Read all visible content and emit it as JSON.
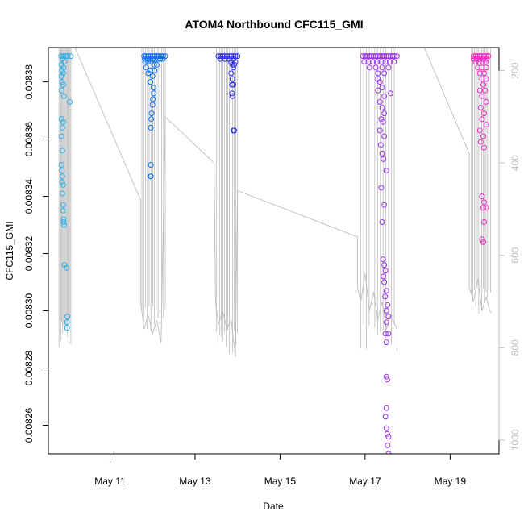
{
  "chart_data": {
    "type": "scatter",
    "title": "ATOM4 Northbound CFC115_GMI",
    "xlabel": "Date",
    "ylabel": "CFC115_GMI",
    "x_unit": "days since May 9 00:00",
    "xlim": [
      0.55,
      11.15
    ],
    "ylim": [
      0.00825,
      0.008392
    ],
    "y2lim": [
      1030,
      150
    ],
    "x_ticks": [
      {
        "label": "May 11",
        "value": 2
      },
      {
        "label": "May 13",
        "value": 4
      },
      {
        "label": "May 15",
        "value": 6
      },
      {
        "label": "May 17",
        "value": 8
      },
      {
        "label": "May 19",
        "value": 10
      }
    ],
    "y_ticks": [
      {
        "label": "0.00826",
        "value": 0.00826
      },
      {
        "label": "0.00828",
        "value": 0.00828
      },
      {
        "label": "0.00830",
        "value": 0.0083
      },
      {
        "label": "0.00832",
        "value": 0.00832
      },
      {
        "label": "0.00834",
        "value": 0.00834
      },
      {
        "label": "0.00836",
        "value": 0.00836
      },
      {
        "label": "0.00838",
        "value": 0.00838
      }
    ],
    "y2_ticks": [
      {
        "label": "200",
        "value": 200
      },
      {
        "label": "400",
        "value": 400
      },
      {
        "label": "600",
        "value": 600
      },
      {
        "label": "800",
        "value": 800
      },
      {
        "label": "1000",
        "value": 1000
      }
    ],
    "flights": [
      {
        "name": "flight-1",
        "color": "#29AEEA",
        "t0": 0.8,
        "t1": 1.08,
        "minP": 800,
        "points": [
          [
            0.85,
            0.008389
          ],
          [
            0.9,
            0.008389
          ],
          [
            0.95,
            0.008389
          ],
          [
            1.0,
            0.008389
          ],
          [
            1.08,
            0.008389
          ],
          [
            0.88,
            0.008388
          ],
          [
            0.93,
            0.008387
          ],
          [
            0.86,
            0.008386
          ],
          [
            0.91,
            0.008385
          ],
          [
            0.87,
            0.008384
          ],
          [
            0.9,
            0.008383
          ],
          [
            0.86,
            0.008382
          ],
          [
            0.87,
            0.00838
          ],
          [
            0.9,
            0.008379
          ],
          [
            0.86,
            0.008377
          ],
          [
            0.92,
            0.008375
          ],
          [
            1.05,
            0.008373
          ],
          [
            0.86,
            0.008367
          ],
          [
            0.9,
            0.008366
          ],
          [
            0.88,
            0.008364
          ],
          [
            0.86,
            0.008361
          ],
          [
            0.88,
            0.008356
          ],
          [
            0.86,
            0.008351
          ],
          [
            0.87,
            0.008349
          ],
          [
            0.88,
            0.008347
          ],
          [
            0.87,
            0.008345
          ],
          [
            0.9,
            0.008344
          ],
          [
            0.88,
            0.008341
          ],
          [
            0.9,
            0.008337
          ],
          [
            0.9,
            0.008335
          ],
          [
            0.91,
            0.008332
          ],
          [
            0.91,
            0.008331
          ],
          [
            0.92,
            0.00833
          ],
          [
            0.93,
            0.008316
          ],
          [
            0.98,
            0.008315
          ],
          [
            1.0,
            0.008298
          ],
          [
            0.99,
            0.008296
          ],
          [
            0.99,
            0.008294
          ]
        ]
      },
      {
        "name": "flight-2",
        "color": "#0A6FEF",
        "t0": 2.75,
        "t1": 3.3,
        "minP": 770,
        "points": [
          [
            2.8,
            0.008389
          ],
          [
            2.85,
            0.008389
          ],
          [
            2.9,
            0.008389
          ],
          [
            2.95,
            0.008389
          ],
          [
            3.0,
            0.008389
          ],
          [
            3.05,
            0.008389
          ],
          [
            3.1,
            0.008389
          ],
          [
            3.15,
            0.008389
          ],
          [
            3.2,
            0.008389
          ],
          [
            3.25,
            0.008389
          ],
          [
            3.3,
            0.008389
          ],
          [
            2.82,
            0.008388
          ],
          [
            2.88,
            0.008388
          ],
          [
            2.94,
            0.008388
          ],
          [
            3.0,
            0.008388
          ],
          [
            3.06,
            0.008388
          ],
          [
            3.12,
            0.008388
          ],
          [
            3.18,
            0.008388
          ],
          [
            3.24,
            0.008388
          ],
          [
            2.83,
            0.008387
          ],
          [
            2.9,
            0.008387
          ],
          [
            2.97,
            0.008387
          ],
          [
            3.04,
            0.008386
          ],
          [
            3.1,
            0.008386
          ],
          [
            2.85,
            0.008385
          ],
          [
            2.95,
            0.008384
          ],
          [
            3.05,
            0.008384
          ],
          [
            2.9,
            0.008383
          ],
          [
            3.0,
            0.008382
          ],
          [
            2.95,
            0.00838
          ],
          [
            3.02,
            0.008378
          ],
          [
            3.03,
            0.008376
          ],
          [
            3.01,
            0.008374
          ],
          [
            3.0,
            0.008372
          ],
          [
            2.98,
            0.008369
          ],
          [
            2.97,
            0.008367
          ],
          [
            2.96,
            0.008364
          ],
          [
            2.96,
            0.008351
          ],
          [
            2.96,
            0.008347
          ],
          [
            2.95,
            0.008347
          ]
        ]
      },
      {
        "name": "flight-3",
        "color": "#2F2FE0",
        "t0": 4.5,
        "t1": 5.0,
        "minP": 820,
        "points": [
          [
            4.55,
            0.008389
          ],
          [
            4.6,
            0.008389
          ],
          [
            4.65,
            0.008389
          ],
          [
            4.7,
            0.008389
          ],
          [
            4.75,
            0.008389
          ],
          [
            4.8,
            0.008389
          ],
          [
            4.85,
            0.008389
          ],
          [
            4.9,
            0.008389
          ],
          [
            4.95,
            0.008389
          ],
          [
            5.0,
            0.008389
          ],
          [
            4.6,
            0.008388
          ],
          [
            4.7,
            0.008388
          ],
          [
            4.8,
            0.008388
          ],
          [
            4.9,
            0.008388
          ],
          [
            4.85,
            0.008387
          ],
          [
            4.95,
            0.008387
          ],
          [
            4.88,
            0.008386
          ],
          [
            4.92,
            0.008386
          ],
          [
            4.9,
            0.008385
          ],
          [
            4.85,
            0.008383
          ],
          [
            4.88,
            0.008381
          ],
          [
            4.87,
            0.008379
          ],
          [
            4.9,
            0.008379
          ],
          [
            4.87,
            0.008376
          ],
          [
            4.88,
            0.008375
          ],
          [
            4.9,
            0.008363
          ],
          [
            4.92,
            0.008363
          ]
        ]
      },
      {
        "name": "flight-4",
        "color": "#9B2EF0",
        "t0": 7.9,
        "t1": 8.75,
        "minP": 810,
        "points": [
          [
            7.95,
            0.008389
          ],
          [
            8.0,
            0.008389
          ],
          [
            8.05,
            0.008389
          ],
          [
            8.1,
            0.008389
          ],
          [
            8.15,
            0.008389
          ],
          [
            8.2,
            0.008389
          ],
          [
            8.25,
            0.008389
          ],
          [
            8.3,
            0.008389
          ],
          [
            8.35,
            0.008389
          ],
          [
            8.4,
            0.008389
          ],
          [
            8.45,
            0.008389
          ],
          [
            8.5,
            0.008389
          ],
          [
            8.55,
            0.008389
          ],
          [
            8.6,
            0.008389
          ],
          [
            8.65,
            0.008389
          ],
          [
            8.7,
            0.008389
          ],
          [
            8.75,
            0.008389
          ],
          [
            7.98,
            0.008387
          ],
          [
            8.08,
            0.008387
          ],
          [
            8.18,
            0.008387
          ],
          [
            8.28,
            0.008387
          ],
          [
            8.38,
            0.008387
          ],
          [
            8.48,
            0.008387
          ],
          [
            8.58,
            0.008387
          ],
          [
            8.68,
            0.008387
          ],
          [
            8.1,
            0.008385
          ],
          [
            8.25,
            0.008385
          ],
          [
            8.4,
            0.008385
          ],
          [
            8.55,
            0.008385
          ],
          [
            8.3,
            0.008383
          ],
          [
            8.45,
            0.008383
          ],
          [
            8.3,
            0.008381
          ],
          [
            8.35,
            0.00838
          ],
          [
            8.4,
            0.008378
          ],
          [
            8.3,
            0.008377
          ],
          [
            8.45,
            0.008375
          ],
          [
            8.6,
            0.008376
          ],
          [
            8.35,
            0.008373
          ],
          [
            8.4,
            0.008371
          ],
          [
            8.45,
            0.008369
          ],
          [
            8.38,
            0.008367
          ],
          [
            8.42,
            0.008366
          ],
          [
            8.35,
            0.008363
          ],
          [
            8.45,
            0.008361
          ],
          [
            8.37,
            0.008358
          ],
          [
            8.4,
            0.008355
          ],
          [
            8.43,
            0.008353
          ],
          [
            8.5,
            0.008349
          ],
          [
            8.38,
            0.008343
          ],
          [
            8.45,
            0.008337
          ],
          [
            8.4,
            0.008331
          ],
          [
            8.42,
            0.008318
          ],
          [
            8.45,
            0.008316
          ],
          [
            8.48,
            0.008314
          ],
          [
            8.43,
            0.008312
          ],
          [
            8.45,
            0.00831
          ],
          [
            8.5,
            0.008307
          ],
          [
            8.47,
            0.008305
          ],
          [
            8.53,
            0.008302
          ],
          [
            8.5,
            0.0083
          ],
          [
            8.55,
            0.008298
          ],
          [
            8.5,
            0.008296
          ],
          [
            8.48,
            0.008292
          ],
          [
            8.55,
            0.008292
          ],
          [
            8.5,
            0.008289
          ],
          [
            8.5,
            0.008277
          ],
          [
            8.52,
            0.008276
          ],
          [
            8.5,
            0.008266
          ],
          [
            8.48,
            0.008263
          ],
          [
            8.5,
            0.008259
          ],
          [
            8.52,
            0.008257
          ],
          [
            8.55,
            0.008256
          ],
          [
            8.53,
            0.008253
          ],
          [
            8.55,
            0.00825
          ],
          [
            8.52,
            0.008249
          ]
        ]
      },
      {
        "name": "flight-5",
        "color": "#EC2AC4",
        "t0": 10.5,
        "t1": 10.95,
        "minP": 730,
        "points": [
          [
            10.55,
            0.008389
          ],
          [
            10.6,
            0.008389
          ],
          [
            10.65,
            0.008389
          ],
          [
            10.7,
            0.008389
          ],
          [
            10.75,
            0.008389
          ],
          [
            10.8,
            0.008389
          ],
          [
            10.85,
            0.008389
          ],
          [
            10.9,
            0.008389
          ],
          [
            10.55,
            0.008388
          ],
          [
            10.62,
            0.008388
          ],
          [
            10.7,
            0.008388
          ],
          [
            10.78,
            0.008388
          ],
          [
            10.86,
            0.008388
          ],
          [
            10.6,
            0.008387
          ],
          [
            10.68,
            0.008387
          ],
          [
            10.76,
            0.008387
          ],
          [
            10.84,
            0.008387
          ],
          [
            10.65,
            0.008385
          ],
          [
            10.75,
            0.008385
          ],
          [
            10.85,
            0.008385
          ],
          [
            10.7,
            0.008383
          ],
          [
            10.8,
            0.008383
          ],
          [
            10.75,
            0.008381
          ],
          [
            10.85,
            0.008381
          ],
          [
            10.78,
            0.008379
          ],
          [
            10.7,
            0.008377
          ],
          [
            10.82,
            0.008377
          ],
          [
            10.75,
            0.008375
          ],
          [
            10.85,
            0.008373
          ],
          [
            10.72,
            0.008371
          ],
          [
            10.8,
            0.008369
          ],
          [
            10.75,
            0.008367
          ],
          [
            10.85,
            0.008365
          ],
          [
            10.7,
            0.008363
          ],
          [
            10.78,
            0.008361
          ],
          [
            10.72,
            0.008359
          ],
          [
            10.8,
            0.008357
          ],
          [
            10.75,
            0.00834
          ],
          [
            10.8,
            0.008338
          ],
          [
            10.78,
            0.008336
          ],
          [
            10.85,
            0.008336
          ],
          [
            10.8,
            0.008331
          ],
          [
            10.75,
            0.008325
          ],
          [
            10.78,
            0.008324
          ]
        ]
      }
    ],
    "path_line": {
      "color": "#BDBDBD",
      "points": [
        [
          1.08,
          130
        ],
        [
          2.72,
          480
        ],
        [
          2.72,
          700
        ],
        [
          2.8,
          760
        ],
        [
          2.9,
          730
        ],
        [
          3.0,
          770
        ],
        [
          3.1,
          740
        ],
        [
          3.2,
          790
        ],
        [
          3.3,
          300
        ],
        [
          4.45,
          400
        ],
        [
          4.48,
          700
        ],
        [
          4.55,
          750
        ],
        [
          4.65,
          720
        ],
        [
          4.75,
          760
        ],
        [
          4.85,
          740
        ],
        [
          4.95,
          820
        ],
        [
          5.0,
          460
        ],
        [
          7.82,
          560
        ],
        [
          7.82,
          670
        ],
        [
          7.9,
          700
        ],
        [
          8.0,
          640
        ],
        [
          8.1,
          720
        ],
        [
          8.2,
          680
        ],
        [
          8.3,
          740
        ],
        [
          8.4,
          700
        ],
        [
          8.5,
          760
        ],
        [
          8.6,
          730
        ],
        [
          8.75,
          760
        ],
        [
          8.75,
          130
        ],
        [
          9.3,
          130
        ],
        [
          10.45,
          380
        ],
        [
          10.45,
          670
        ],
        [
          10.55,
          700
        ],
        [
          10.65,
          650
        ],
        [
          10.75,
          720
        ],
        [
          10.85,
          690
        ],
        [
          10.95,
          725
        ]
      ]
    }
  }
}
